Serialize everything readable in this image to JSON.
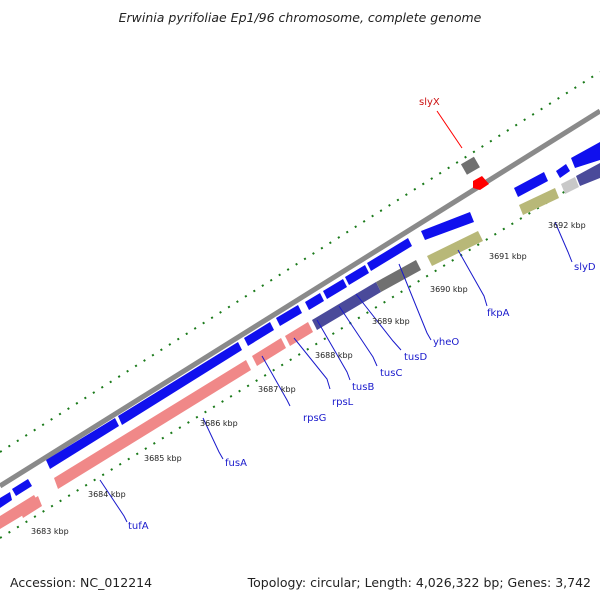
{
  "title": "Erwinia pyrifoliae Ep1/96 chromosome, complete genome",
  "footer": {
    "accession": "Accession: NC_012214",
    "summary": "Topology: circular; Length: 4,026,322 bp; Genes: 3,742"
  },
  "colors": {
    "backbone": "#8a8a8a",
    "ticks": "#1a7a1a",
    "forward_cds": "#1010ee",
    "reverse_cds": "#f08888",
    "operon_purple": "#4a4a9a",
    "operon_olive": "#b8b878",
    "gray_feature": "#707070",
    "light_gray_feature": "#c8c8c8",
    "highlight": "#ff0000",
    "gene_label": "#1a1acc",
    "highlight_label": "#cc1111"
  },
  "kbp_labels": [
    "3683 kbp",
    "3684 kbp",
    "3685 kbp",
    "3686 kbp",
    "3687 kbp",
    "3688 kbp",
    "3689 kbp",
    "3690 kbp",
    "3691 kbp",
    "3692 kbp"
  ],
  "genes": [
    "tufA",
    "fusA",
    "rpsG",
    "rpsL",
    "tusB",
    "tusC",
    "tusD",
    "yheO",
    "fkpA",
    "slyD"
  ],
  "highlight_gene": "slyX"
}
